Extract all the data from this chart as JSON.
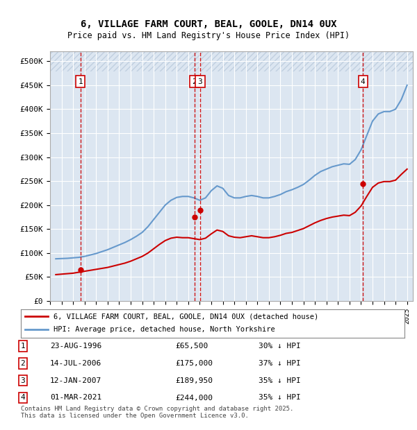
{
  "title_line1": "6, VILLAGE FARM COURT, BEAL, GOOLE, DN14 0UX",
  "title_line2": "Price paid vs. HM Land Registry's House Price Index (HPI)",
  "ylabel": "",
  "background_color": "#ffffff",
  "plot_bg_color": "#dce6f1",
  "hatch_color": "#c0cfe0",
  "grid_color": "#ffffff",
  "sale_dates_num": [
    1996.64,
    2006.54,
    2007.04,
    2021.17
  ],
  "sale_prices": [
    65500,
    175000,
    189950,
    244000
  ],
  "sale_labels": [
    "1",
    "2",
    "3",
    "4"
  ],
  "sale_label_dates": [
    "23-AUG-1996",
    "14-JUL-2006",
    "12-JAN-2007",
    "01-MAR-2021"
  ],
  "sale_label_prices": [
    "£65,500",
    "£175,000",
    "£189,950",
    "£244,000"
  ],
  "sale_label_hpi": [
    "30% ↓ HPI",
    "37% ↓ HPI",
    "35% ↓ HPI",
    "35% ↓ HPI"
  ],
  "red_line_color": "#cc0000",
  "blue_line_color": "#6699cc",
  "dashed_line_color": "#cc0000",
  "ylim_min": 0,
  "ylim_max": 520000,
  "yticks": [
    0,
    50000,
    100000,
    150000,
    200000,
    250000,
    300000,
    350000,
    400000,
    450000,
    500000
  ],
  "ytick_labels": [
    "£0",
    "£50K",
    "£100K",
    "£150K",
    "£200K",
    "£250K",
    "£300K",
    "£350K",
    "£400K",
    "£450K",
    "£500K"
  ],
  "xlim_min": 1994.0,
  "xlim_max": 2025.5,
  "xtick_years": [
    1994,
    1995,
    1996,
    1997,
    1998,
    1999,
    2000,
    2001,
    2002,
    2003,
    2004,
    2005,
    2006,
    2007,
    2008,
    2009,
    2010,
    2011,
    2012,
    2013,
    2014,
    2015,
    2016,
    2017,
    2018,
    2019,
    2020,
    2021,
    2022,
    2023,
    2024,
    2025
  ],
  "legend_label1": "6, VILLAGE FARM COURT, BEAL, GOOLE, DN14 0UX (detached house)",
  "legend_label2": "HPI: Average price, detached house, North Yorkshire",
  "footnote": "Contains HM Land Registry data © Crown copyright and database right 2025.\nThis data is licensed under the Open Government Licence v3.0.",
  "hpi_data": {
    "years": [
      1994.5,
      1995.0,
      1995.5,
      1996.0,
      1996.5,
      1997.0,
      1997.5,
      1998.0,
      1998.5,
      1999.0,
      1999.5,
      2000.0,
      2000.5,
      2001.0,
      2001.5,
      2002.0,
      2002.5,
      2003.0,
      2003.5,
      2004.0,
      2004.5,
      2005.0,
      2005.5,
      2006.0,
      2006.5,
      2007.0,
      2007.5,
      2008.0,
      2008.5,
      2009.0,
      2009.5,
      2010.0,
      2010.5,
      2011.0,
      2011.5,
      2012.0,
      2012.5,
      2013.0,
      2013.5,
      2014.0,
      2014.5,
      2015.0,
      2015.5,
      2016.0,
      2016.5,
      2017.0,
      2017.5,
      2018.0,
      2018.5,
      2019.0,
      2019.5,
      2020.0,
      2020.5,
      2021.0,
      2021.5,
      2022.0,
      2022.5,
      2023.0,
      2023.5,
      2024.0,
      2024.5,
      2025.0
    ],
    "values": [
      88000,
      88500,
      89000,
      90000,
      91000,
      93000,
      96000,
      99000,
      103000,
      107000,
      112000,
      117000,
      122000,
      128000,
      135000,
      143000,
      155000,
      170000,
      185000,
      200000,
      210000,
      216000,
      218000,
      218000,
      215000,
      210000,
      215000,
      230000,
      240000,
      235000,
      220000,
      215000,
      215000,
      218000,
      220000,
      218000,
      215000,
      215000,
      218000,
      222000,
      228000,
      232000,
      237000,
      243000,
      252000,
      262000,
      270000,
      275000,
      280000,
      283000,
      286000,
      285000,
      295000,
      315000,
      345000,
      375000,
      390000,
      395000,
      395000,
      400000,
      420000,
      450000
    ]
  },
  "red_data": {
    "years": [
      1994.5,
      1995.0,
      1995.5,
      1996.0,
      1996.5,
      1997.0,
      1997.5,
      1998.0,
      1998.5,
      1999.0,
      1999.5,
      2000.0,
      2000.5,
      2001.0,
      2001.5,
      2002.0,
      2002.5,
      2003.0,
      2003.5,
      2004.0,
      2004.5,
      2005.0,
      2005.5,
      2006.0,
      2006.5,
      2007.0,
      2007.5,
      2008.0,
      2008.5,
      2009.0,
      2009.5,
      2010.0,
      2010.5,
      2011.0,
      2011.5,
      2012.0,
      2012.5,
      2013.0,
      2013.5,
      2014.0,
      2014.5,
      2015.0,
      2015.5,
      2016.0,
      2016.5,
      2017.0,
      2017.5,
      2018.0,
      2018.5,
      2019.0,
      2019.5,
      2020.0,
      2020.5,
      2021.0,
      2021.5,
      2022.0,
      2022.5,
      2023.0,
      2023.5,
      2024.0,
      2024.5,
      2025.0
    ],
    "values": [
      55000,
      56000,
      57000,
      58000,
      60000,
      62000,
      64000,
      66000,
      68000,
      70000,
      73000,
      76000,
      79000,
      83000,
      88000,
      93000,
      100000,
      109000,
      118000,
      126000,
      131000,
      133000,
      132000,
      132000,
      130000,
      128000,
      131000,
      140000,
      148000,
      145000,
      136000,
      133000,
      132000,
      134000,
      136000,
      134000,
      132000,
      132000,
      134000,
      137000,
      141000,
      143000,
      147000,
      151000,
      157000,
      163000,
      168000,
      172000,
      175000,
      177000,
      179000,
      178000,
      185000,
      198000,
      218000,
      237000,
      246000,
      249000,
      249000,
      252000,
      264000,
      275000
    ]
  }
}
